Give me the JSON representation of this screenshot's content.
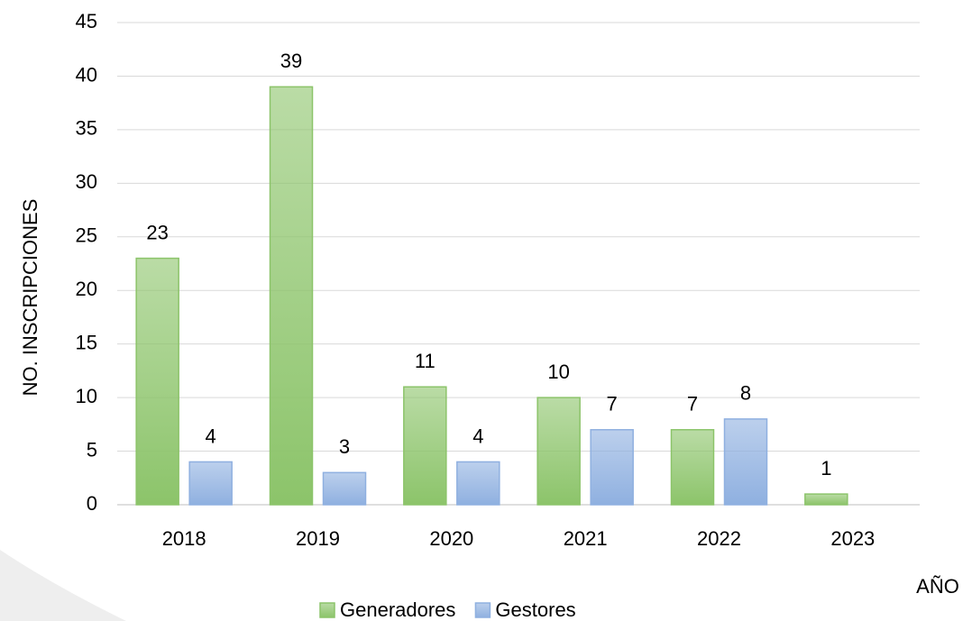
{
  "chart_data": {
    "type": "bar",
    "categories": [
      "2018",
      "2019",
      "2020",
      "2021",
      "2022",
      "2023"
    ],
    "series": [
      {
        "name": "Generadores",
        "color": "#8cc46a",
        "values": [
          23,
          39,
          11,
          10,
          7,
          1
        ]
      },
      {
        "name": "Gestores",
        "color": "#8fb0e0",
        "values": [
          4,
          3,
          4,
          7,
          8,
          null
        ]
      }
    ],
    "y_label": "NO. INSCRIPCIONES",
    "x_label": "AÑO",
    "ylim": [
      0,
      45
    ],
    "yticks": [
      0,
      5,
      10,
      15,
      20,
      25,
      30,
      35,
      40,
      45
    ],
    "grid": true,
    "legend": "bottom"
  }
}
